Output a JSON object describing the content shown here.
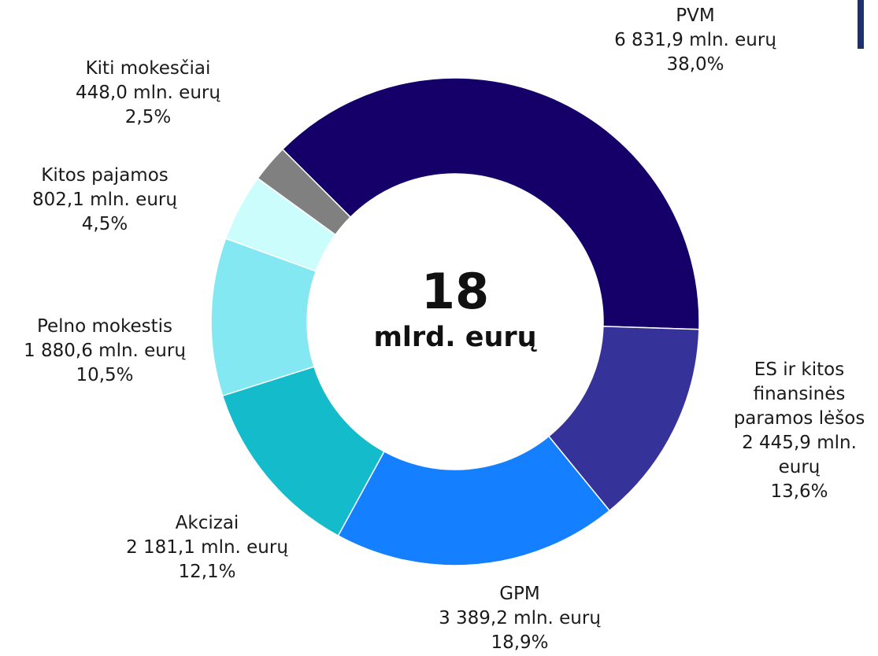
{
  "chart_data": {
    "type": "donut",
    "categories": [
      "PVM",
      "ES ir kitos finansinės paramos lėšos",
      "GPM",
      "Akcizai",
      "Pelno mokestis",
      "Kitos pajamos",
      "Kiti mokesčiai"
    ],
    "values": [
      6831.9,
      2445.9,
      3389.2,
      2181.1,
      1880.6,
      802.1,
      448.0
    ],
    "value_labels": [
      "6 831,9 mln. eurų",
      "2 445,9 mln. eurų",
      "3 389,2 mln. eurų",
      "2 181,1 mln. eurų",
      "1 880,6 mln. eurų",
      "802,1 mln. eurų",
      "448,0 mln. eurų"
    ],
    "percents": [
      38.0,
      13.6,
      18.9,
      12.1,
      10.5,
      4.5,
      2.5
    ],
    "percent_labels": [
      "38,0%",
      "13,6%",
      "18,9%",
      "12,1%",
      "10,5%",
      "4,5%",
      "2,5%"
    ],
    "colors": [
      "#140068",
      "#35339a",
      "#1480ff",
      "#14bccb",
      "#83e8f2",
      "#ccfdfd",
      "#808080"
    ],
    "center_value": 18,
    "center_label": "mlrd. eurų"
  }
}
